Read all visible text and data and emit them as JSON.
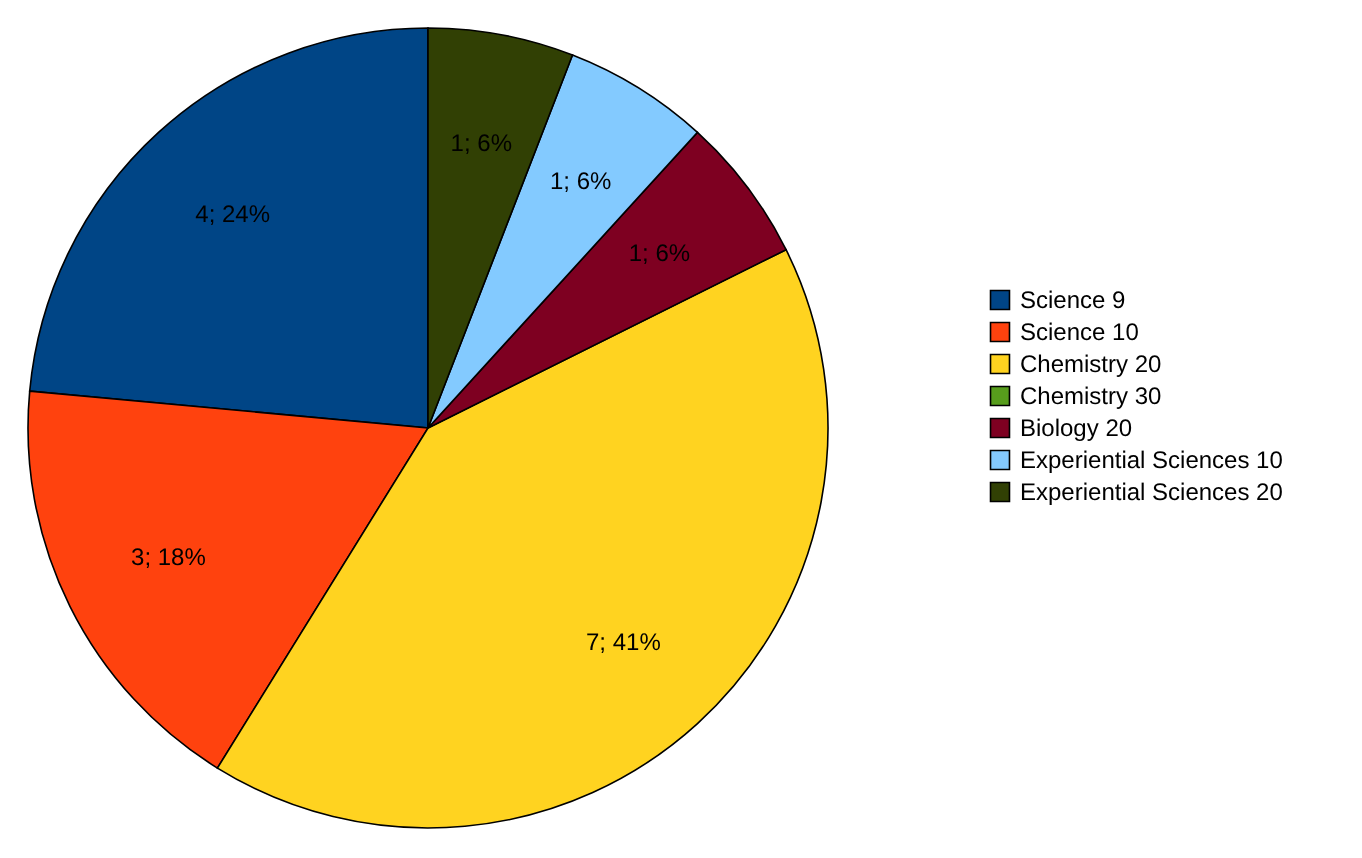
{
  "chart_data": {
    "type": "pie",
    "categories": [
      "Science 9",
      "Science 10",
      "Chemistry 20",
      "Chemistry 30",
      "Biology 20",
      "Experiential Sciences 10",
      "Experiential Sciences 20"
    ],
    "values": [
      4,
      3,
      7,
      0,
      1,
      1,
      1
    ],
    "colors": [
      "#004586",
      "#ff420e",
      "#ffd320",
      "#579d1c",
      "#7e0021",
      "#83caff",
      "#314004"
    ],
    "value_labels": [
      "4; 24%",
      "3; 18%",
      "7; 41%",
      null,
      "1; 6%",
      "1; 6%",
      "1; 6%"
    ],
    "legend": "right"
  }
}
